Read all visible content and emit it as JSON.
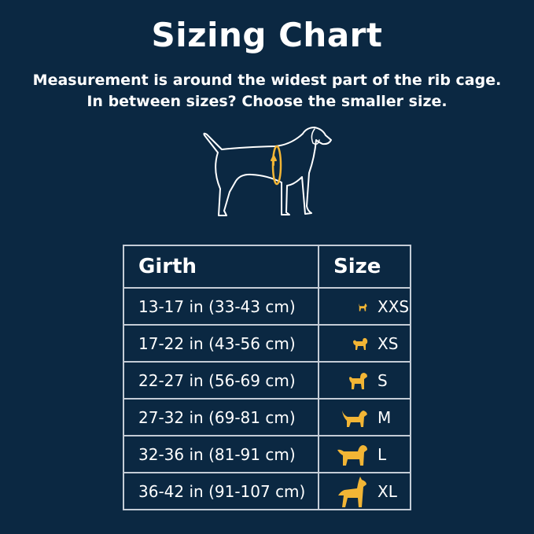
{
  "title": "Sizing Chart",
  "subtitle_line1": "Measurement is around the widest part of the rib cage.",
  "subtitle_line2": "In between sizes? Choose the smaller size.",
  "colors": {
    "background": "#0b2842",
    "accent": "#f2b535",
    "text": "#ffffff",
    "grid": "#c4ccd6"
  },
  "illustration": "dog-outline-with-girth-measurement-icon",
  "table": {
    "headers": [
      "Girth",
      "Size"
    ],
    "rows": [
      {
        "girth": "13-17 in (33-43 cm)",
        "size": "XXS",
        "icon": "tiny-dog-icon"
      },
      {
        "girth": "17-22 in (43-56 cm)",
        "size": "XS",
        "icon": "small-fluffy-dog-icon"
      },
      {
        "girth": "22-27 in (56-69 cm)",
        "size": "S",
        "icon": "poodle-dog-icon"
      },
      {
        "girth": "27-32 in (69-81 cm)",
        "size": "M",
        "icon": "retriever-dog-icon"
      },
      {
        "girth": "32-36 in (81-91 cm)",
        "size": "L",
        "icon": "labrador-dog-icon"
      },
      {
        "girth": "36-42 in (91-107 cm)",
        "size": "XL",
        "icon": "great-dane-dog-icon"
      }
    ]
  }
}
